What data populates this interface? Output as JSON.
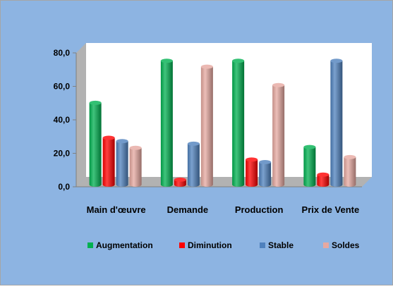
{
  "chart_data": {
    "type": "bar",
    "categories": [
      "Main d'œuvre",
      "Demande",
      "Production",
      "Prix de Vente"
    ],
    "series": [
      {
        "name": "Augmentation",
        "values": [
          48.9,
          74.0,
          74.0,
          22.5
        ]
      },
      {
        "name": "Diminution",
        "values": [
          28.0,
          3.0,
          15.0,
          6.0
        ]
      },
      {
        "name": "Stable",
        "values": [
          26.0,
          24.5,
          13.5,
          74.0
        ]
      },
      {
        "name": "Soldes",
        "values": [
          22.0,
          70.5,
          59.5,
          16.5
        ]
      }
    ],
    "yticks": [
      "0,0",
      "20,0",
      "40,0",
      "60,0",
      "80,0"
    ],
    "ylim": [
      0,
      80
    ],
    "grid": false,
    "legend_position": "bottom"
  },
  "colors": {
    "background": "#8DB4E2",
    "plot_wall": "#FFFFFF",
    "side_wall": "#B2B2B2",
    "floor": "#B2B2B2",
    "series": [
      "#00B050",
      "#FF0000",
      "#4F81BD",
      "#E6A8A0"
    ]
  }
}
